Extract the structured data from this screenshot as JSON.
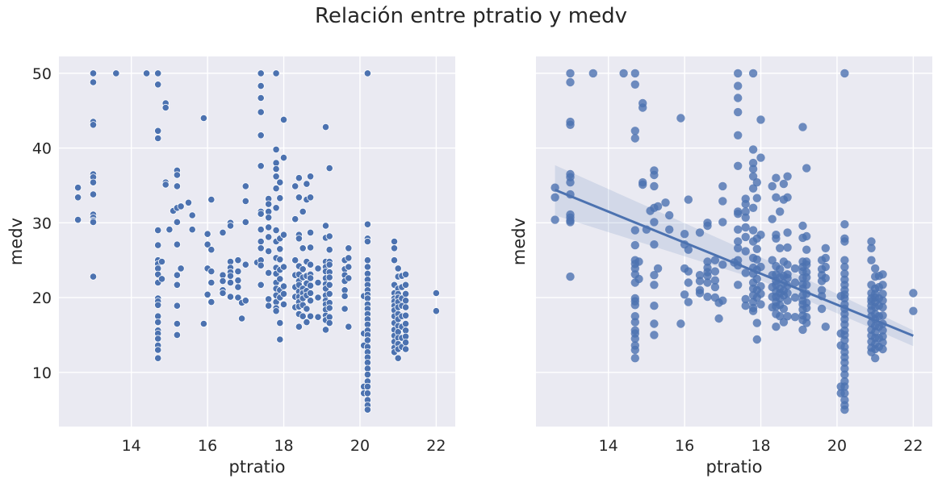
{
  "title": "Relación entre ptratio y medv",
  "chart_data": [
    {
      "type": "scatter",
      "xlabel": "ptratio",
      "ylabel": "medv",
      "xlim": [
        12.1,
        22.5
      ],
      "ylim": [
        2.75,
        52.25
      ],
      "xticks": [
        "14",
        "16",
        "18",
        "20",
        "22"
      ],
      "yticks": [
        "10",
        "20",
        "30",
        "40",
        "50"
      ],
      "grid": true,
      "point_color": "#4c72b0",
      "background_color": "#eaeaf2",
      "points": [
        [
          12.6,
          34.7
        ],
        [
          12.6,
          33.4
        ],
        [
          12.6,
          30.4
        ],
        [
          13.0,
          50.0
        ],
        [
          13.0,
          48.8
        ],
        [
          13.0,
          43.5
        ],
        [
          13.0,
          43.1
        ],
        [
          13.0,
          36.5
        ],
        [
          13.0,
          36.1
        ],
        [
          13.0,
          35.4
        ],
        [
          13.0,
          33.8
        ],
        [
          13.0,
          31.1
        ],
        [
          13.0,
          30.7
        ],
        [
          13.0,
          30.3
        ],
        [
          13.0,
          30.1
        ],
        [
          13.0,
          22.8
        ],
        [
          13.6,
          50.0
        ],
        [
          14.4,
          50.0
        ],
        [
          14.7,
          50.0
        ],
        [
          14.7,
          48.5
        ],
        [
          14.7,
          42.3
        ],
        [
          14.7,
          41.3
        ],
        [
          14.7,
          29.0
        ],
        [
          14.7,
          27.0
        ],
        [
          14.7,
          25.0
        ],
        [
          14.7,
          24.5
        ],
        [
          14.7,
          23.9
        ],
        [
          14.7,
          23.1
        ],
        [
          14.7,
          22.0
        ],
        [
          14.7,
          19.9
        ],
        [
          14.7,
          19.5
        ],
        [
          14.7,
          19.0
        ],
        [
          14.7,
          17.5
        ],
        [
          14.7,
          16.7
        ],
        [
          14.7,
          15.6
        ],
        [
          14.7,
          15.2
        ],
        [
          14.7,
          14.5
        ],
        [
          14.7,
          13.6
        ],
        [
          14.7,
          13.0
        ],
        [
          14.7,
          11.9
        ],
        [
          14.8,
          22.5
        ],
        [
          14.8,
          24.8
        ],
        [
          14.9,
          46.0
        ],
        [
          14.9,
          45.4
        ],
        [
          14.9,
          35.4
        ],
        [
          14.9,
          35.1
        ],
        [
          15.0,
          29.1
        ],
        [
          15.1,
          31.6
        ],
        [
          15.2,
          37.0
        ],
        [
          15.2,
          36.4
        ],
        [
          15.2,
          34.9
        ],
        [
          15.2,
          32.0
        ],
        [
          15.2,
          30.1
        ],
        [
          15.2,
          27.1
        ],
        [
          15.2,
          23.0
        ],
        [
          15.2,
          21.7
        ],
        [
          15.2,
          18.9
        ],
        [
          15.2,
          16.5
        ],
        [
          15.2,
          15.0
        ],
        [
          15.3,
          23.9
        ],
        [
          15.3,
          32.2
        ],
        [
          15.5,
          32.7
        ],
        [
          15.6,
          31.0
        ],
        [
          15.6,
          29.1
        ],
        [
          15.9,
          44.0
        ],
        [
          15.9,
          16.5
        ],
        [
          16.0,
          28.5
        ],
        [
          16.0,
          27.1
        ],
        [
          16.0,
          23.9
        ],
        [
          16.0,
          20.4
        ],
        [
          16.1,
          33.1
        ],
        [
          16.1,
          26.4
        ],
        [
          16.1,
          23.5
        ],
        [
          16.1,
          22.0
        ],
        [
          16.1,
          19.4
        ],
        [
          16.4,
          28.7
        ],
        [
          16.4,
          23.0
        ],
        [
          16.4,
          22.2
        ],
        [
          16.4,
          21.0
        ],
        [
          16.4,
          20.6
        ],
        [
          16.6,
          30.0
        ],
        [
          16.6,
          29.6
        ],
        [
          16.6,
          24.8
        ],
        [
          16.6,
          24.0
        ],
        [
          16.6,
          23.4
        ],
        [
          16.6,
          22.9
        ],
        [
          16.6,
          22.0
        ],
        [
          16.6,
          20.1
        ],
        [
          16.8,
          25.0
        ],
        [
          16.8,
          23.5
        ],
        [
          16.8,
          22.3
        ],
        [
          16.8,
          21.4
        ],
        [
          16.8,
          20.0
        ],
        [
          16.9,
          19.3
        ],
        [
          16.9,
          17.2
        ],
        [
          17.0,
          34.9
        ],
        [
          17.0,
          32.9
        ],
        [
          17.0,
          30.1
        ],
        [
          17.0,
          24.4
        ],
        [
          17.0,
          19.6
        ],
        [
          17.3,
          24.7
        ],
        [
          17.4,
          50.0
        ],
        [
          17.4,
          48.3
        ],
        [
          17.4,
          46.7
        ],
        [
          17.4,
          44.8
        ],
        [
          17.4,
          41.7
        ],
        [
          17.4,
          37.6
        ],
        [
          17.4,
          31.5
        ],
        [
          17.4,
          31.2
        ],
        [
          17.4,
          29.1
        ],
        [
          17.4,
          27.5
        ],
        [
          17.4,
          26.6
        ],
        [
          17.4,
          25.0
        ],
        [
          17.4,
          24.3
        ],
        [
          17.4,
          21.7
        ],
        [
          17.6,
          33.2
        ],
        [
          17.6,
          32.5
        ],
        [
          17.6,
          31.5
        ],
        [
          17.6,
          30.7
        ],
        [
          17.6,
          29.4
        ],
        [
          17.6,
          28.1
        ],
        [
          17.6,
          26.2
        ],
        [
          17.6,
          23.3
        ],
        [
          17.6,
          19.8
        ],
        [
          17.6,
          18.9
        ],
        [
          17.8,
          50.0
        ],
        [
          17.8,
          39.8
        ],
        [
          17.8,
          38.0
        ],
        [
          17.8,
          37.2
        ],
        [
          17.8,
          36.2
        ],
        [
          17.8,
          34.6
        ],
        [
          17.8,
          32.0
        ],
        [
          17.8,
          29.0
        ],
        [
          17.8,
          27.5
        ],
        [
          17.8,
          25.3
        ],
        [
          17.8,
          24.0
        ],
        [
          17.8,
          23.2
        ],
        [
          17.8,
          22.0
        ],
        [
          17.8,
          21.2
        ],
        [
          17.8,
          20.3
        ],
        [
          17.8,
          19.4
        ],
        [
          17.8,
          18.6
        ],
        [
          17.8,
          18.2
        ],
        [
          17.9,
          35.4
        ],
        [
          17.9,
          33.3
        ],
        [
          17.9,
          27.9
        ],
        [
          17.9,
          26.5
        ],
        [
          17.9,
          25.1
        ],
        [
          17.9,
          23.7
        ],
        [
          17.9,
          22.5
        ],
        [
          17.9,
          21.0
        ],
        [
          17.9,
          20.0
        ],
        [
          17.9,
          16.6
        ],
        [
          17.9,
          14.4
        ],
        [
          18.0,
          43.8
        ],
        [
          18.0,
          38.7
        ],
        [
          18.0,
          28.4
        ],
        [
          18.0,
          24.1
        ],
        [
          18.0,
          21.5
        ],
        [
          18.0,
          20.5
        ],
        [
          18.0,
          19.1
        ],
        [
          18.3,
          34.9
        ],
        [
          18.3,
          30.5
        ],
        [
          18.3,
          25.0
        ],
        [
          18.3,
          23.0
        ],
        [
          18.3,
          21.4
        ],
        [
          18.3,
          20.1
        ],
        [
          18.3,
          18.7
        ],
        [
          18.4,
          36.0
        ],
        [
          18.4,
          33.4
        ],
        [
          18.4,
          28.4
        ],
        [
          18.4,
          27.9
        ],
        [
          18.4,
          24.2
        ],
        [
          18.4,
          23.1
        ],
        [
          18.4,
          22.2
        ],
        [
          18.4,
          21.7
        ],
        [
          18.4,
          20.8
        ],
        [
          18.4,
          20.1
        ],
        [
          18.4,
          19.4
        ],
        [
          18.4,
          18.8
        ],
        [
          18.4,
          17.8
        ],
        [
          18.4,
          16.1
        ],
        [
          18.5,
          31.5
        ],
        [
          18.5,
          26.6
        ],
        [
          18.5,
          23.8
        ],
        [
          18.5,
          22.7
        ],
        [
          18.5,
          21.2
        ],
        [
          18.5,
          20.6
        ],
        [
          18.5,
          19.9
        ],
        [
          18.5,
          19.0
        ],
        [
          18.5,
          17.5
        ],
        [
          18.6,
          35.2
        ],
        [
          18.6,
          33.1
        ],
        [
          18.6,
          24.8
        ],
        [
          18.6,
          22.9
        ],
        [
          18.6,
          21.9
        ],
        [
          18.6,
          20.9
        ],
        [
          18.6,
          20.3
        ],
        [
          18.6,
          18.5
        ],
        [
          18.6,
          16.7
        ],
        [
          18.7,
          36.2
        ],
        [
          18.7,
          33.4
        ],
        [
          18.7,
          28.7
        ],
        [
          18.7,
          26.7
        ],
        [
          18.7,
          24.4
        ],
        [
          18.7,
          23.1
        ],
        [
          18.7,
          22.6
        ],
        [
          18.7,
          21.6
        ],
        [
          18.7,
          20.6
        ],
        [
          18.7,
          19.6
        ],
        [
          18.7,
          17.5
        ],
        [
          18.9,
          23.9
        ],
        [
          18.9,
          22.0
        ],
        [
          18.9,
          20.0
        ],
        [
          18.9,
          17.4
        ],
        [
          19.1,
          42.8
        ],
        [
          19.1,
          29.6
        ],
        [
          19.1,
          28.0
        ],
        [
          19.1,
          24.8
        ],
        [
          19.1,
          24.1
        ],
        [
          19.1,
          23.5
        ],
        [
          19.1,
          22.6
        ],
        [
          19.1,
          21.8
        ],
        [
          19.1,
          21.2
        ],
        [
          19.1,
          20.3
        ],
        [
          19.1,
          19.6
        ],
        [
          19.1,
          19.1
        ],
        [
          19.1,
          18.4
        ],
        [
          19.1,
          17.6
        ],
        [
          19.1,
          17.0
        ],
        [
          19.1,
          15.7
        ],
        [
          19.2,
          37.3
        ],
        [
          19.2,
          28.2
        ],
        [
          19.2,
          26.4
        ],
        [
          19.2,
          24.8
        ],
        [
          19.2,
          24.4
        ],
        [
          19.2,
          23.4
        ],
        [
          19.2,
          22.7
        ],
        [
          19.2,
          21.7
        ],
        [
          19.2,
          20.5
        ],
        [
          19.2,
          19.3
        ],
        [
          19.2,
          18.6
        ],
        [
          19.2,
          17.4
        ],
        [
          19.2,
          16.6
        ],
        [
          19.6,
          25.0
        ],
        [
          19.6,
          23.8
        ],
        [
          19.6,
          23.0
        ],
        [
          19.6,
          22.2
        ],
        [
          19.6,
          21.0
        ],
        [
          19.6,
          20.2
        ],
        [
          19.6,
          18.5
        ],
        [
          19.7,
          26.6
        ],
        [
          19.7,
          25.3
        ],
        [
          19.7,
          24.1
        ],
        [
          19.7,
          22.6
        ],
        [
          19.7,
          16.1
        ],
        [
          20.1,
          20.2
        ],
        [
          20.1,
          15.2
        ],
        [
          20.1,
          13.6
        ],
        [
          20.1,
          8.1
        ],
        [
          20.1,
          7.2
        ],
        [
          20.2,
          50.0
        ],
        [
          20.2,
          29.8
        ],
        [
          20.2,
          27.9
        ],
        [
          20.2,
          27.5
        ],
        [
          20.2,
          25.0
        ],
        [
          20.2,
          24.1
        ],
        [
          20.2,
          23.2
        ],
        [
          20.2,
          22.4
        ],
        [
          20.2,
          21.7
        ],
        [
          20.2,
          21.0
        ],
        [
          20.2,
          20.4
        ],
        [
          20.2,
          19.9
        ],
        [
          20.2,
          19.1
        ],
        [
          20.2,
          18.5
        ],
        [
          20.2,
          17.8
        ],
        [
          20.2,
          17.1
        ],
        [
          20.2,
          16.4
        ],
        [
          20.2,
          15.6
        ],
        [
          20.2,
          15.0
        ],
        [
          20.2,
          14.3
        ],
        [
          20.2,
          13.4
        ],
        [
          20.2,
          12.7
        ],
        [
          20.2,
          12.0
        ],
        [
          20.2,
          11.3
        ],
        [
          20.2,
          10.5
        ],
        [
          20.2,
          9.7
        ],
        [
          20.2,
          8.8
        ],
        [
          20.2,
          8.1
        ],
        [
          20.2,
          7.2
        ],
        [
          20.2,
          6.3
        ],
        [
          20.2,
          5.6
        ],
        [
          20.2,
          5.0
        ],
        [
          20.9,
          27.5
        ],
        [
          20.9,
          26.6
        ],
        [
          20.9,
          25.0
        ],
        [
          20.9,
          21.7
        ],
        [
          20.9,
          20.6
        ],
        [
          20.9,
          19.9
        ],
        [
          20.9,
          19.5
        ],
        [
          20.9,
          18.9
        ],
        [
          20.9,
          18.3
        ],
        [
          20.9,
          17.5
        ],
        [
          20.9,
          16.6
        ],
        [
          20.9,
          15.7
        ],
        [
          20.9,
          14.9
        ],
        [
          20.9,
          14.1
        ],
        [
          20.9,
          13.3
        ],
        [
          20.9,
          12.7
        ],
        [
          21.0,
          23.9
        ],
        [
          21.0,
          22.8
        ],
        [
          21.0,
          21.2
        ],
        [
          21.0,
          20.5
        ],
        [
          21.0,
          20.0
        ],
        [
          21.0,
          19.4
        ],
        [
          21.0,
          18.7
        ],
        [
          21.0,
          17.8
        ],
        [
          21.0,
          17.1
        ],
        [
          21.0,
          16.2
        ],
        [
          21.0,
          15.4
        ],
        [
          21.0,
          14.6
        ],
        [
          21.0,
          13.8
        ],
        [
          21.0,
          13.1
        ],
        [
          21.0,
          11.9
        ],
        [
          21.1,
          22.9
        ],
        [
          21.1,
          21.4
        ],
        [
          21.1,
          19.9
        ],
        [
          21.1,
          18.9
        ],
        [
          21.1,
          17.5
        ],
        [
          21.1,
          16.1
        ],
        [
          21.1,
          14.6
        ],
        [
          21.1,
          13.4
        ],
        [
          21.2,
          23.1
        ],
        [
          21.2,
          21.7
        ],
        [
          21.2,
          20.5
        ],
        [
          21.2,
          19.6
        ],
        [
          21.2,
          18.7
        ],
        [
          21.2,
          17.6
        ],
        [
          21.2,
          16.5
        ],
        [
          21.2,
          15.6
        ],
        [
          21.2,
          14.8
        ],
        [
          21.2,
          14.0
        ],
        [
          21.2,
          13.1
        ],
        [
          22.0,
          20.6
        ],
        [
          22.0,
          18.2
        ]
      ]
    },
    {
      "type": "scatter",
      "xlabel": "ptratio",
      "ylabel": "medv",
      "xlim": [
        12.1,
        22.5
      ],
      "ylim": [
        2.75,
        52.25
      ],
      "xticks": [
        "14",
        "16",
        "18",
        "20",
        "22"
      ],
      "yticks": [],
      "grid": true,
      "point_color": "#4c72b0",
      "background_color": "#eaeaf2",
      "points_same_as_left": true,
      "regression": {
        "x": [
          12.6,
          22.0
        ],
        "y": [
          34.4,
          14.9
        ],
        "ci_upper": [
          37.7,
          15.6
        ],
        "ci_mid_upper": [
          25.4,
          21.4
        ],
        "ci_mid_x": 18.0,
        "ci_lower_end": [
          31.0,
          13.5
        ],
        "ci_mid_lower": [
          22.3
        ],
        "line_color": "#4c72b0",
        "band_color": "#4c72b0"
      }
    }
  ]
}
